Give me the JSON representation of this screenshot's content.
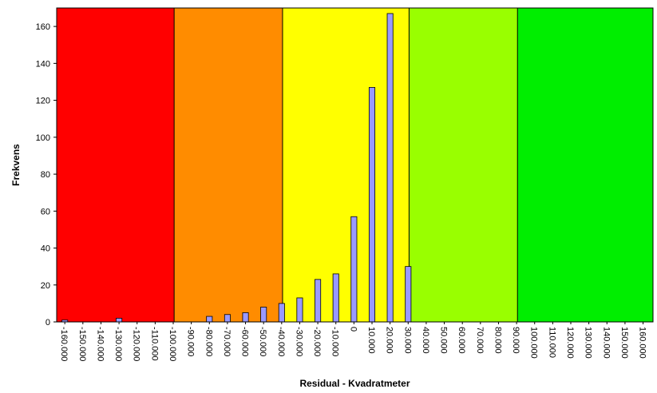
{
  "chart_data": {
    "type": "bar",
    "xlabel": "Residual - Kvadratmeter",
    "ylabel": "Frekvens",
    "ylim": [
      0,
      170
    ],
    "yticks": [
      0,
      20,
      40,
      60,
      80,
      100,
      120,
      140,
      160
    ],
    "grid": false,
    "legend": "none",
    "categories": [
      "-160.000",
      "-150.000",
      "-140.000",
      "-130.000",
      "-120.000",
      "-110.000",
      "-100.000",
      "-90.000",
      "-80.000",
      "-70.000",
      "-60.000",
      "-50.000",
      "-40.000",
      "-30.000",
      "-20.000",
      "-10.000",
      "0",
      "10.000",
      "20.000",
      "30.000",
      "40.000",
      "50.000",
      "60.000",
      "70.000",
      "80.000",
      "90.000",
      "100.000",
      "110.000",
      "120.000",
      "130.000",
      "140.000",
      "150.000",
      "160.000"
    ],
    "values": [
      1,
      0,
      0,
      2,
      0,
      0,
      0,
      0,
      3,
      4,
      5,
      8,
      10,
      13,
      23,
      26,
      57,
      127,
      167,
      30,
      0,
      0,
      0,
      0,
      0,
      0,
      0,
      0,
      0,
      0,
      0,
      0,
      0
    ],
    "bands": [
      {
        "from": "-160.000",
        "to": "-100.000",
        "color": "#ff0000"
      },
      {
        "from": "-90.000",
        "to": "-40.000",
        "color": "#ff8c00"
      },
      {
        "from": "-30.000",
        "to": "30.000",
        "color": "#ffff00"
      },
      {
        "from": "40.000",
        "to": "90.000",
        "color": "#99ff00"
      },
      {
        "from": "100.000",
        "to": "160.000",
        "color": "#00ee00"
      }
    ],
    "bar_color": "#9999ff"
  }
}
